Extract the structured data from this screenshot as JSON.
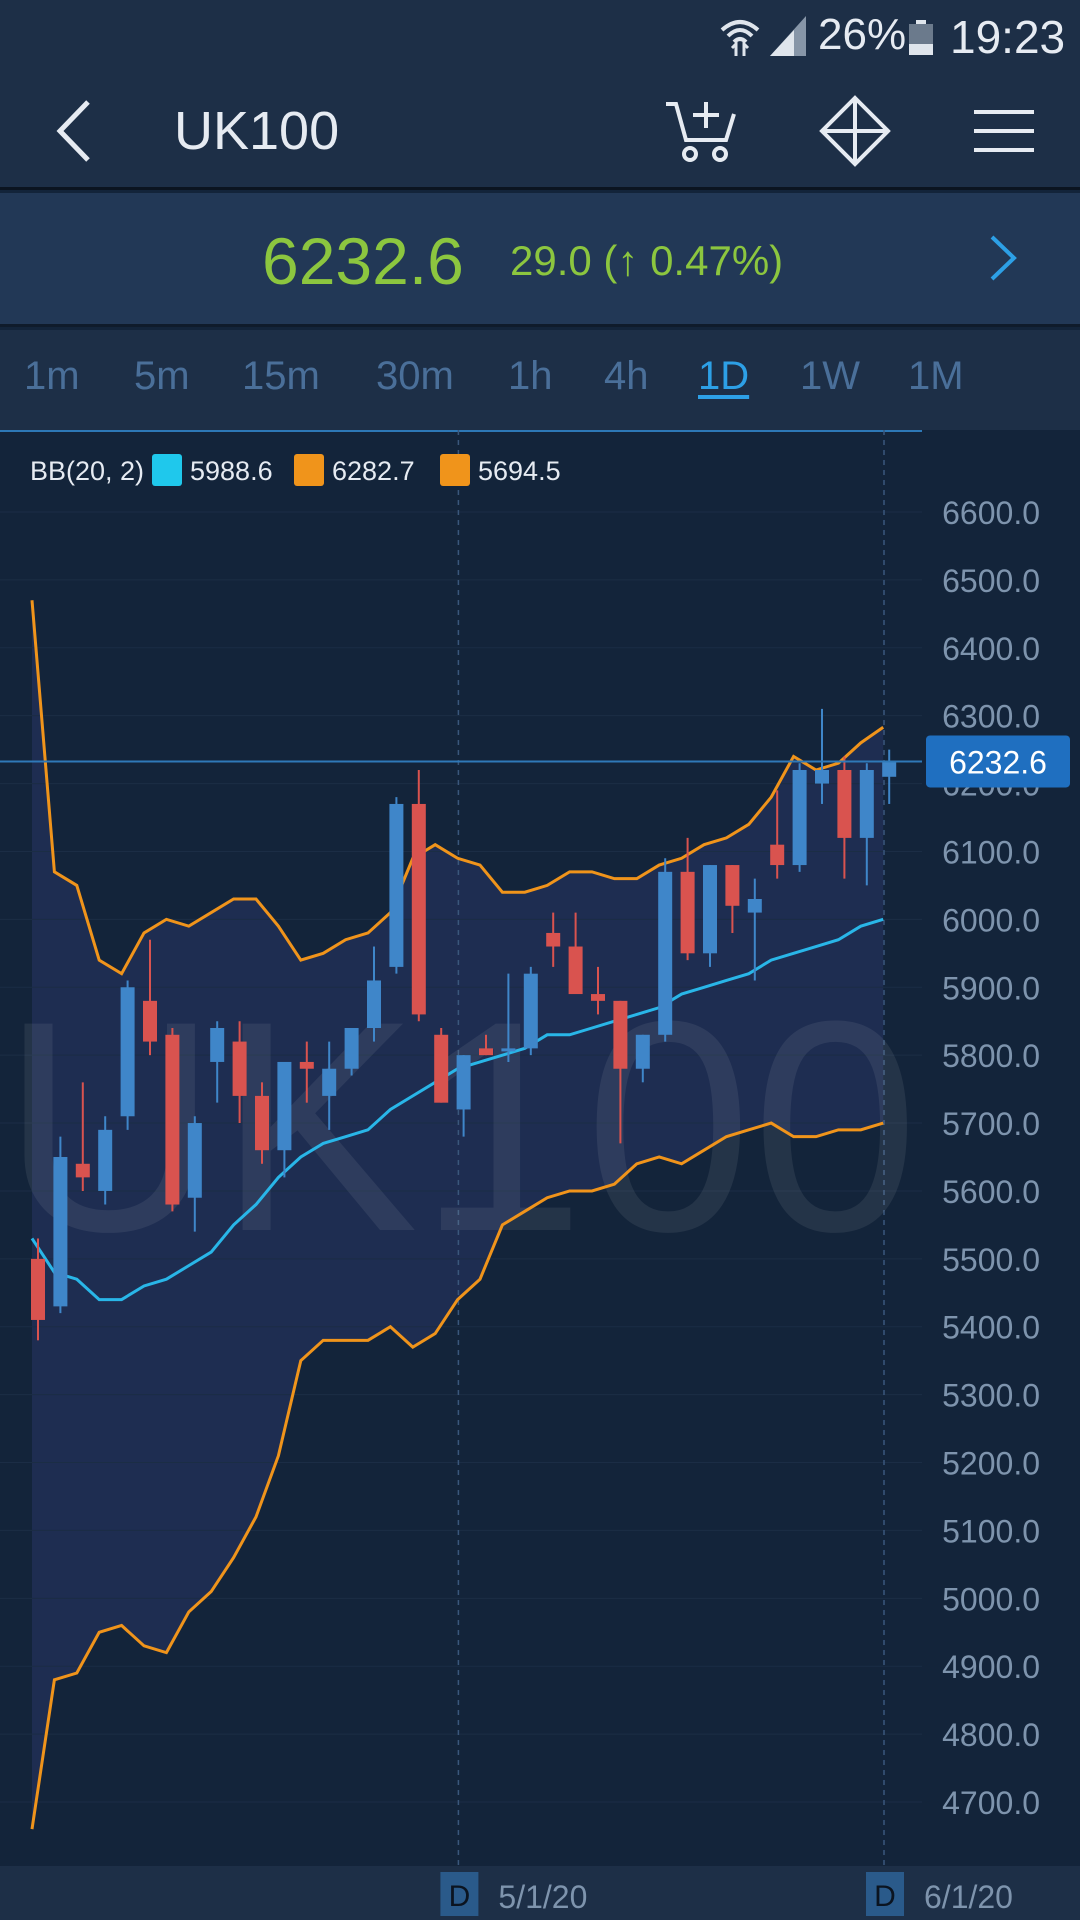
{
  "status_bar": {
    "battery": "26%",
    "time": "19:23"
  },
  "header": {
    "title": "UK100",
    "icons": [
      "back-icon",
      "add-to-cart-icon",
      "move-arrows-icon",
      "menu-icon"
    ]
  },
  "quote": {
    "price": "6232.6",
    "change": "29.0 (↑ 0.47%)"
  },
  "timeframes": [
    {
      "label": "1m"
    },
    {
      "label": "5m"
    },
    {
      "label": "15m"
    },
    {
      "label": "30m"
    },
    {
      "label": "1h"
    },
    {
      "label": "4h"
    },
    {
      "label": "1D",
      "active": true
    },
    {
      "label": "1W"
    },
    {
      "label": "1M"
    }
  ],
  "colors": {
    "up": "#3f86c9",
    "down": "#d9534f",
    "mid_band": "#29b6e8",
    "outer_band": "#f0941b",
    "price_line": "#2f79b8",
    "accent": "#8cc63f"
  },
  "chart_data": {
    "type": "candlestick",
    "watermark": "UK100",
    "legend": {
      "label": "BB(20, 2)",
      "items": [
        {
          "value": "5988.6",
          "color": "#1fc8ec"
        },
        {
          "value": "6282.7",
          "color": "#f0941b"
        },
        {
          "value": "5694.5",
          "color": "#f0941b"
        }
      ]
    },
    "y_ticks": [
      "6600.0",
      "6500.0",
      "6400.0",
      "6300.0",
      "6200.0",
      "6100.0",
      "6000.0",
      "5900.0",
      "5800.0",
      "5700.0",
      "5600.0",
      "5500.0",
      "5400.0",
      "5300.0",
      "5200.0",
      "5100.0",
      "5000.0",
      "4900.0",
      "4800.0",
      "4700.0"
    ],
    "ylim": [
      4650,
      6670
    ],
    "current_price": 6232.6,
    "current_price_label": "6232.6",
    "x_labels": [
      {
        "badge": "D",
        "date": "5/1/20",
        "index": 18.5
      },
      {
        "badge": "D",
        "date": "6/1/20",
        "index": 37.5
      }
    ],
    "candles": [
      {
        "o": 5500,
        "h": 5530,
        "l": 5380,
        "c": 5410
      },
      {
        "o": 5430,
        "h": 5680,
        "l": 5420,
        "c": 5650
      },
      {
        "o": 5640,
        "h": 5760,
        "l": 5600,
        "c": 5620
      },
      {
        "o": 5600,
        "h": 5710,
        "l": 5580,
        "c": 5690
      },
      {
        "o": 5710,
        "h": 5910,
        "l": 5690,
        "c": 5900
      },
      {
        "o": 5880,
        "h": 5970,
        "l": 5800,
        "c": 5820
      },
      {
        "o": 5830,
        "h": 5840,
        "l": 5570,
        "c": 5580
      },
      {
        "o": 5590,
        "h": 5710,
        "l": 5540,
        "c": 5700
      },
      {
        "o": 5790,
        "h": 5850,
        "l": 5730,
        "c": 5840
      },
      {
        "o": 5820,
        "h": 5850,
        "l": 5700,
        "c": 5740
      },
      {
        "o": 5740,
        "h": 5760,
        "l": 5640,
        "c": 5660
      },
      {
        "o": 5660,
        "h": 5790,
        "l": 5620,
        "c": 5790
      },
      {
        "o": 5790,
        "h": 5820,
        "l": 5730,
        "c": 5780
      },
      {
        "o": 5740,
        "h": 5820,
        "l": 5690,
        "c": 5780
      },
      {
        "o": 5780,
        "h": 5840,
        "l": 5770,
        "c": 5840
      },
      {
        "o": 5840,
        "h": 5960,
        "l": 5820,
        "c": 5910
      },
      {
        "o": 5930,
        "h": 6180,
        "l": 5920,
        "c": 6170
      },
      {
        "o": 6170,
        "h": 6220,
        "l": 5850,
        "c": 5860
      },
      {
        "o": 5830,
        "h": 5840,
        "l": 5730,
        "c": 5730
      },
      {
        "o": 5720,
        "h": 5800,
        "l": 5680,
        "c": 5800
      },
      {
        "o": 5810,
        "h": 5830,
        "l": 5800,
        "c": 5800
      },
      {
        "o": 5810,
        "h": 5920,
        "l": 5790,
        "c": 5810
      },
      {
        "o": 5810,
        "h": 5930,
        "l": 5800,
        "c": 5920
      },
      {
        "o": 5980,
        "h": 6010,
        "l": 5930,
        "c": 5960
      },
      {
        "o": 5960,
        "h": 6010,
        "l": 5890,
        "c": 5890
      },
      {
        "o": 5890,
        "h": 5930,
        "l": 5860,
        "c": 5880
      },
      {
        "o": 5880,
        "h": 5860,
        "l": 5670,
        "c": 5780
      },
      {
        "o": 5780,
        "h": 5830,
        "l": 5760,
        "c": 5830
      },
      {
        "o": 5830,
        "h": 6090,
        "l": 5820,
        "c": 6070
      },
      {
        "o": 6070,
        "h": 6120,
        "l": 5940,
        "c": 5950
      },
      {
        "o": 5950,
        "h": 6080,
        "l": 5930,
        "c": 6080
      },
      {
        "o": 6080,
        "h": 6070,
        "l": 5980,
        "c": 6020
      },
      {
        "o": 6010,
        "h": 6060,
        "l": 5910,
        "c": 6030
      },
      {
        "o": 6110,
        "h": 6190,
        "l": 6060,
        "c": 6080
      },
      {
        "o": 6080,
        "h": 6230,
        "l": 6070,
        "c": 6220
      },
      {
        "o": 6200,
        "h": 6310,
        "l": 6170,
        "c": 6220
      },
      {
        "o": 6220,
        "h": 6240,
        "l": 6060,
        "c": 6120
      },
      {
        "o": 6120,
        "h": 6230,
        "l": 6050,
        "c": 6220
      },
      {
        "o": 6210,
        "h": 6250,
        "l": 6170,
        "c": 6232.6
      }
    ],
    "bb_middle": [
      5530,
      5480,
      5470,
      5440,
      5440,
      5460,
      5470,
      5490,
      5510,
      5550,
      5580,
      5620,
      5650,
      5670,
      5680,
      5690,
      5720,
      5740,
      5760,
      5780,
      5790,
      5800,
      5810,
      5830,
      5830,
      5840,
      5850,
      5860,
      5870,
      5890,
      5900,
      5910,
      5920,
      5940,
      5950,
      5960,
      5970,
      5990,
      6000
    ],
    "bb_upper": [
      6470,
      6070,
      6050,
      5940,
      5920,
      5980,
      6000,
      5990,
      6010,
      6030,
      6030,
      5990,
      5940,
      5950,
      5970,
      5980,
      6010,
      6090,
      6110,
      6090,
      6080,
      6040,
      6040,
      6050,
      6070,
      6070,
      6060,
      6060,
      6080,
      6090,
      6110,
      6120,
      6140,
      6180,
      6240,
      6220,
      6230,
      6260,
      6283
    ],
    "bb_lower": [
      4660,
      4880,
      4890,
      4950,
      4960,
      4930,
      4920,
      4980,
      5010,
      5060,
      5120,
      5210,
      5350,
      5380,
      5380,
      5380,
      5400,
      5370,
      5390,
      5440,
      5470,
      5550,
      5570,
      5590,
      5600,
      5600,
      5610,
      5640,
      5650,
      5640,
      5660,
      5680,
      5690,
      5700,
      5680,
      5680,
      5690,
      5690,
      5700
    ]
  }
}
